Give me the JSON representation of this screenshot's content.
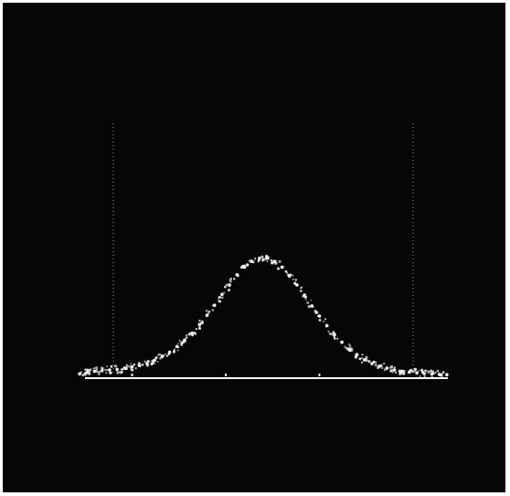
{
  "chart_data": {
    "type": "scatter",
    "title": "",
    "xlabel": "",
    "ylabel": "",
    "xlim": [
      -4.5,
      4.5
    ],
    "ylim": [
      0,
      1
    ],
    "grid": false,
    "legend": "none",
    "colors": {
      "screen": "#060606",
      "trace": "#f2f2f2",
      "baseline": "#ffffff",
      "markers": "#9a9a9a",
      "border": "#ffffff"
    },
    "vertical_markers": [
      -4,
      4
    ],
    "baseline_ticks": [
      -3.5,
      -1,
      1.5
    ],
    "series": [
      {
        "values": [
          [
            -4.9,
            0.02
          ],
          [
            -4.7,
            0.03
          ],
          [
            -4.5,
            0.04
          ],
          [
            -4.3,
            0.045
          ],
          [
            -4.1,
            0.05
          ],
          [
            -3.9,
            0.055
          ],
          [
            -3.7,
            0.065
          ],
          [
            -3.5,
            0.075
          ],
          [
            -3.3,
            0.085
          ],
          [
            -3.1,
            0.1
          ],
          [
            -2.9,
            0.125
          ],
          [
            -2.7,
            0.155
          ],
          [
            -2.5,
            0.19
          ],
          [
            -2.3,
            0.235
          ],
          [
            -2.1,
            0.285
          ],
          [
            -1.9,
            0.34
          ],
          [
            -1.7,
            0.405
          ],
          [
            -1.5,
            0.48
          ],
          [
            -1.3,
            0.56
          ],
          [
            -1.1,
            0.645
          ],
          [
            -0.9,
            0.72
          ],
          [
            -0.7,
            0.8
          ],
          [
            -0.5,
            0.86
          ],
          [
            -0.3,
            0.905
          ],
          [
            -0.1,
            0.93
          ],
          [
            0.1,
            0.93
          ],
          [
            0.3,
            0.905
          ],
          [
            0.5,
            0.86
          ],
          [
            0.7,
            0.795
          ],
          [
            0.9,
            0.72
          ],
          [
            1.1,
            0.64
          ],
          [
            1.3,
            0.555
          ],
          [
            1.5,
            0.475
          ],
          [
            1.7,
            0.4
          ],
          [
            1.9,
            0.33
          ],
          [
            2.1,
            0.27
          ],
          [
            2.3,
            0.215
          ],
          [
            2.5,
            0.17
          ],
          [
            2.7,
            0.13
          ],
          [
            2.9,
            0.1
          ],
          [
            3.1,
            0.08
          ],
          [
            3.3,
            0.065
          ],
          [
            3.5,
            0.05
          ],
          [
            3.7,
            0.04
          ],
          [
            3.9,
            0.033
          ],
          [
            4.1,
            0.027
          ],
          [
            4.3,
            0.022
          ],
          [
            4.5,
            0.018
          ],
          [
            4.7,
            0.015
          ],
          [
            4.9,
            0.013
          ]
        ]
      }
    ]
  }
}
